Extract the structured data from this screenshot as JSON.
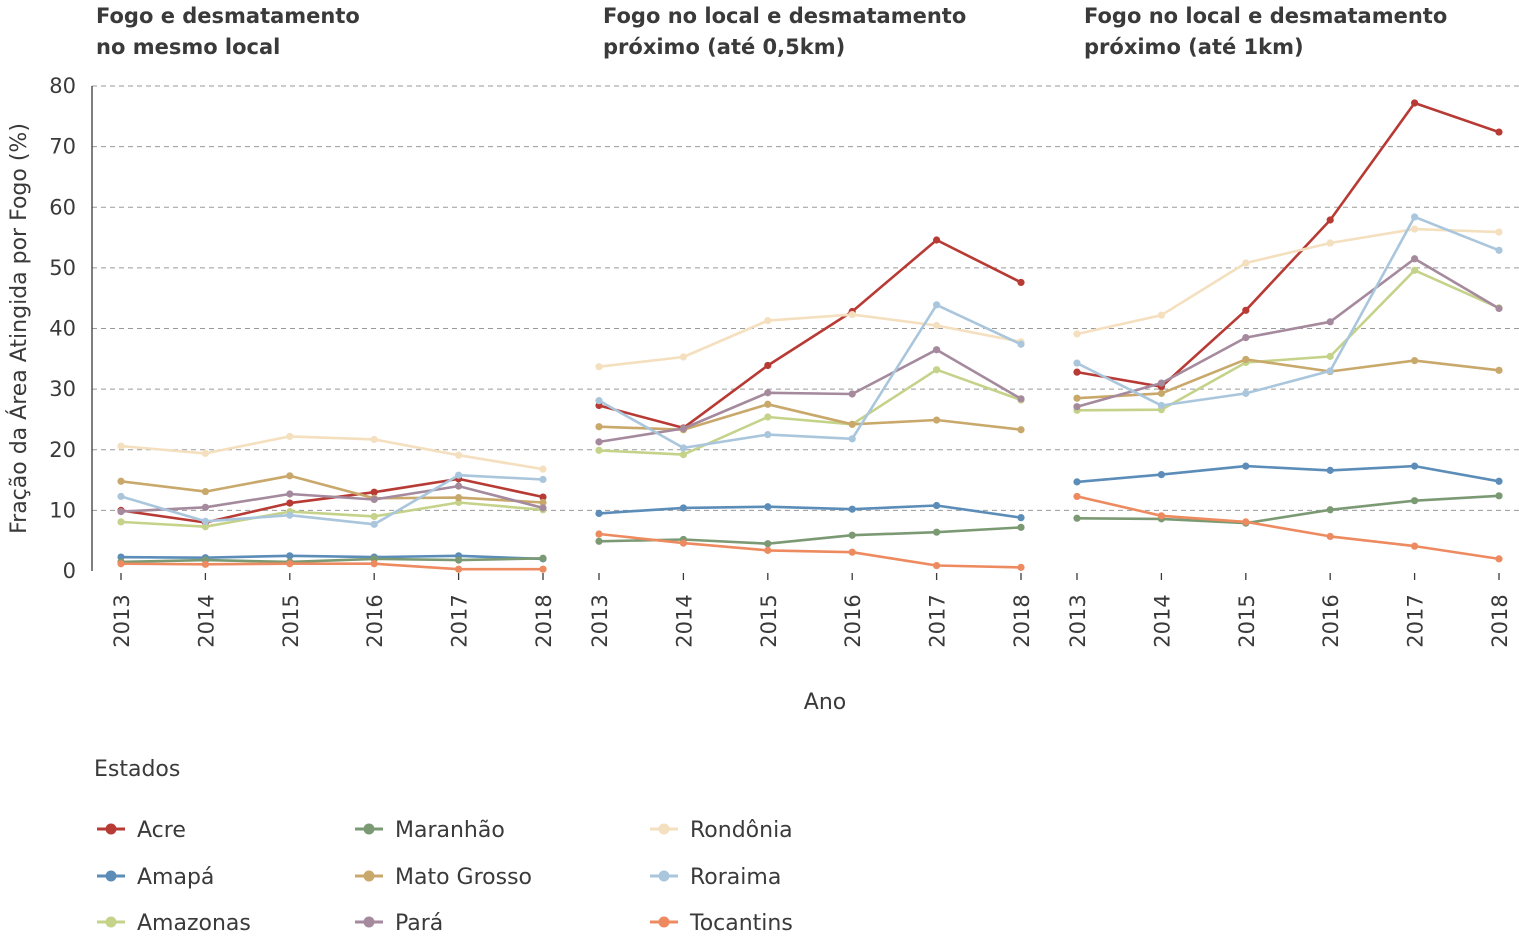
{
  "chart_data": {
    "type": "line",
    "ylabel": "Fração da Área Atingida por Fogo (%)",
    "xlabel": "Ano",
    "ylim": [
      0,
      80
    ],
    "yticks": [
      0,
      10,
      20,
      30,
      40,
      50,
      60,
      70,
      80
    ],
    "x": [
      "2013",
      "2014",
      "2015",
      "2016",
      "2017",
      "2018"
    ],
    "grid": "horizontal dashed",
    "legend": {
      "title": "Estados",
      "placement": "bottom",
      "entries": [
        "Acre",
        "Amapá",
        "Amazonas",
        "Maranhão",
        "Mato Grosso",
        "Pará",
        "Rondônia",
        "Roraima",
        "Tocantins"
      ]
    },
    "panels": [
      {
        "title": [
          "Fogo e desmatamento",
          "no mesmo local"
        ],
        "series": [
          {
            "name": "Acre",
            "color": "#b83a34",
            "values": [
              10,
              8,
              11.2,
              13,
              15.2,
              12.2
            ]
          },
          {
            "name": "Amapá",
            "color": "#5b8db8",
            "values": [
              2.3,
              2.2,
              2.5,
              2.3,
              2.5,
              2
            ]
          },
          {
            "name": "Amazonas",
            "color": "#c5d38a",
            "values": [
              8.1,
              7.3,
              9.8,
              9,
              11.3,
              10.1
            ]
          },
          {
            "name": "Maranhão",
            "color": "#7b9a74",
            "values": [
              1.5,
              1.8,
              1.5,
              2,
              1.8,
              2.1
            ]
          },
          {
            "name": "Mato Grosso",
            "color": "#c9a86b",
            "values": [
              14.8,
              13.1,
              15.7,
              12,
              12.1,
              11.3
            ]
          },
          {
            "name": "Pará",
            "color": "#a58a9e",
            "values": [
              9.8,
              10.5,
              12.7,
              11.8,
              14,
              10.4
            ]
          },
          {
            "name": "Rondônia",
            "color": "#f4dfbe",
            "values": [
              20.6,
              19.4,
              22.2,
              21.7,
              19.1,
              16.8
            ]
          },
          {
            "name": "Roraima",
            "color": "#a9c6dc",
            "values": [
              12.3,
              8.2,
              9.2,
              7.7,
              15.8,
              15.1
            ]
          },
          {
            "name": "Tocantins",
            "color": "#ee8a60",
            "values": [
              1.2,
              1.1,
              1.2,
              1.2,
              0.3,
              0.3
            ]
          }
        ]
      },
      {
        "title": [
          "Fogo no local e desmatamento",
          "próximo (até 0,5km)"
        ],
        "series": [
          {
            "name": "Acre",
            "color": "#b83a34",
            "values": [
              27.3,
              23.6,
              33.9,
              42.8,
              54.6,
              47.6
            ]
          },
          {
            "name": "Amapá",
            "color": "#5b8db8",
            "values": [
              9.5,
              10.4,
              10.6,
              10.2,
              10.8,
              8.8
            ]
          },
          {
            "name": "Amazonas",
            "color": "#c5d38a",
            "values": [
              19.9,
              19.2,
              25.4,
              24.2,
              33.2,
              28.2
            ]
          },
          {
            "name": "Maranhão",
            "color": "#7b9a74",
            "values": [
              4.9,
              5.2,
              4.5,
              5.9,
              6.4,
              7.2
            ]
          },
          {
            "name": "Mato Grosso",
            "color": "#c9a86b",
            "values": [
              23.8,
              23.3,
              27.5,
              24.2,
              24.9,
              23.3
            ]
          },
          {
            "name": "Pará",
            "color": "#a58a9e",
            "values": [
              21.3,
              23.5,
              29.4,
              29.2,
              36.5,
              28.4
            ]
          },
          {
            "name": "Rondônia",
            "color": "#f4dfbe",
            "values": [
              33.7,
              35.3,
              41.3,
              42.3,
              40.5,
              37.8
            ]
          },
          {
            "name": "Roraima",
            "color": "#a9c6dc",
            "values": [
              28.1,
              20.3,
              22.5,
              21.8,
              43.9,
              37.4
            ]
          },
          {
            "name": "Tocantins",
            "color": "#ee8a60",
            "values": [
              6.1,
              4.6,
              3.4,
              3.1,
              0.9,
              0.6
            ]
          }
        ]
      },
      {
        "title": [
          "Fogo no local e desmatamento",
          "próximo (até 1km)"
        ],
        "series": [
          {
            "name": "Acre",
            "color": "#b83a34",
            "values": [
              32.8,
              30.4,
              43,
              57.9,
              77.2,
              72.4
            ]
          },
          {
            "name": "Amapá",
            "color": "#5b8db8",
            "values": [
              14.7,
              15.9,
              17.3,
              16.6,
              17.3,
              14.8
            ]
          },
          {
            "name": "Amazonas",
            "color": "#c5d38a",
            "values": [
              26.5,
              26.6,
              34.4,
              35.4,
              49.6,
              43.4
            ]
          },
          {
            "name": "Maranhão",
            "color": "#7b9a74",
            "values": [
              8.7,
              8.6,
              7.9,
              10.1,
              11.6,
              12.4
            ]
          },
          {
            "name": "Mato Grosso",
            "color": "#c9a86b",
            "values": [
              28.5,
              29.3,
              34.9,
              32.9,
              34.7,
              33.1
            ]
          },
          {
            "name": "Pará",
            "color": "#a58a9e",
            "values": [
              27.1,
              31,
              38.5,
              41.1,
              51.5,
              43.3
            ]
          },
          {
            "name": "Rondônia",
            "color": "#f4dfbe",
            "values": [
              39.1,
              42.2,
              50.8,
              54.1,
              56.4,
              55.9
            ]
          },
          {
            "name": "Roraima",
            "color": "#a9c6dc",
            "values": [
              34.3,
              27.3,
              29.3,
              33,
              58.4,
              52.9
            ]
          },
          {
            "name": "Tocantins",
            "color": "#ee8a60",
            "values": [
              12.3,
              9.1,
              8.1,
              5.7,
              4.1,
              2
            ]
          }
        ]
      }
    ]
  }
}
